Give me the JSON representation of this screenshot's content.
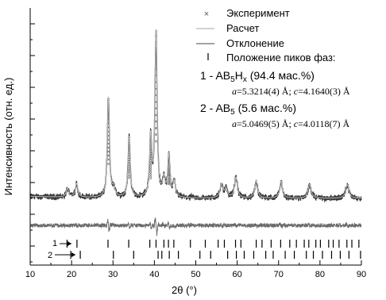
{
  "chart_data": {
    "type": "line",
    "xlabel": "2θ (°)",
    "ylabel": "Интенсивность (отн. ед.)",
    "xlim": [
      10,
      90
    ],
    "xticks": [
      "10",
      "20",
      "30",
      "40",
      "50",
      "60",
      "70",
      "80",
      "90"
    ],
    "legend": {
      "placement": "top-right",
      "experiment": "Эксперимент",
      "calc": "Расчет",
      "diff": "Отклонение",
      "peaks": "Положение пиков фаз:"
    },
    "phases": [
      {
        "prefix": "1 - AB",
        "sub": "5",
        "mid": "H",
        "sub2": "x",
        "suffix": " (94.4 мас.%)",
        "a": "5.3214(4)",
        "c": "4.1640(3)"
      },
      {
        "prefix": "2 - AB",
        "sub": "5",
        "mid": "",
        "sub2": "",
        "suffix": " (5.6 мас.%)",
        "a": "5.0469(5)",
        "c": "4.0118(7)"
      }
    ],
    "param_labels": {
      "a": "a",
      "c": "c",
      "unit": " Å",
      "sep": "; "
    },
    "marker_labels": [
      "1",
      "2"
    ],
    "baseline": 0.055,
    "peaks": [
      {
        "x": 19.0,
        "h": 0.05,
        "w": 0.35
      },
      {
        "x": 21.2,
        "h": 0.08,
        "w": 0.35
      },
      {
        "x": 28.9,
        "h": 0.58,
        "w": 0.3
      },
      {
        "x": 30.2,
        "h": 0.05,
        "w": 0.35
      },
      {
        "x": 33.9,
        "h": 0.35,
        "w": 0.3
      },
      {
        "x": 39.1,
        "h": 0.34,
        "w": 0.3
      },
      {
        "x": 40.4,
        "h": 0.95,
        "w": 0.3
      },
      {
        "x": 42.3,
        "h": 0.1,
        "w": 0.35
      },
      {
        "x": 43.5,
        "h": 0.24,
        "w": 0.3
      },
      {
        "x": 44.8,
        "h": 0.09,
        "w": 0.35
      },
      {
        "x": 56.2,
        "h": 0.08,
        "w": 0.4
      },
      {
        "x": 57.3,
        "h": 0.05,
        "w": 0.4
      },
      {
        "x": 59.7,
        "h": 0.12,
        "w": 0.4
      },
      {
        "x": 64.6,
        "h": 0.1,
        "w": 0.4
      },
      {
        "x": 70.6,
        "h": 0.1,
        "w": 0.4
      },
      {
        "x": 77.5,
        "h": 0.08,
        "w": 0.45
      },
      {
        "x": 86.6,
        "h": 0.08,
        "w": 0.45
      }
    ],
    "phase1_positions": [
      18.9,
      21.3,
      28.8,
      33.8,
      38.9,
      40.4,
      42.3,
      43.4,
      44.7,
      48.7,
      52.3,
      55.4,
      56.9,
      59.6,
      60.9,
      64.6,
      66.0,
      68.2,
      70.5,
      72.7,
      74.3,
      76.2,
      77.3,
      79.0,
      80.1,
      82.1,
      83.2,
      84.6,
      86.5,
      87.7,
      89.4
    ],
    "phase2_positions": [
      19.8,
      22.1,
      30.1,
      35.0,
      40.9,
      41.8,
      43.6,
      45.8,
      51.0,
      53.6,
      57.7,
      59.8,
      61.7,
      64.0,
      66.9,
      68.7,
      71.6,
      73.8,
      76.7,
      78.4,
      80.6,
      82.8,
      84.9,
      87.0,
      89.8
    ]
  }
}
